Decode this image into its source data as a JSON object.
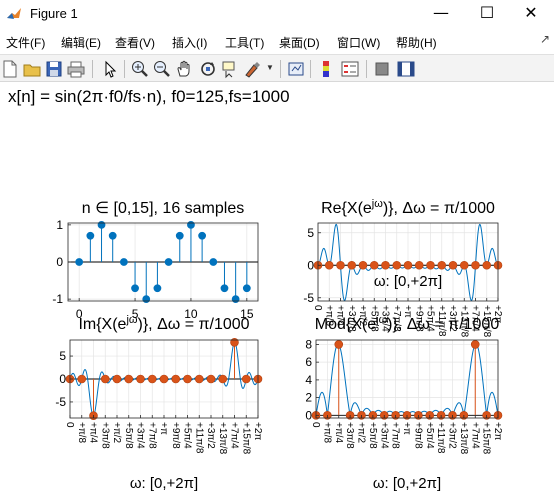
{
  "window": {
    "title": "Figure 1",
    "minimize": "—",
    "maximize": "☐",
    "close": "✕"
  },
  "menu": {
    "items": [
      "文件(F)",
      "编辑(E)",
      "查看(V)",
      "插入(I)",
      "工具(T)",
      "桌面(D)",
      "窗口(W)",
      "帮助(H)"
    ],
    "pin": "↗"
  },
  "toolbar": {
    "icons": [
      "new-figure-icon",
      "open-file-icon",
      "save-icon",
      "print-icon",
      "edit-plot-icon",
      "zoom-in-icon",
      "zoom-out-icon",
      "pan-icon",
      "rotate-3d-icon",
      "data-cursor-icon",
      "brush-icon",
      "link-plot-icon",
      "colorbar-icon",
      "legend-icon",
      "hide-plot-tools-icon",
      "show-plot-tools-icon"
    ]
  },
  "figure": {
    "suptitle": "x[n] = sin(2π·f0/fs·n), f0=125,fs=1000"
  },
  "colors": {
    "blue": "#0072bd",
    "orange": "#d95319"
  },
  "chart_data": [
    {
      "type": "stem",
      "title": "n ∈ [0,15], 16 samples",
      "xlabel": "",
      "ylabel": "",
      "x": [
        0,
        1,
        2,
        3,
        4,
        5,
        6,
        7,
        8,
        9,
        10,
        11,
        12,
        13,
        14,
        15
      ],
      "values": [
        0,
        0.707,
        1,
        0.707,
        0,
        -0.707,
        -1,
        -0.707,
        0,
        0.707,
        1,
        0.707,
        0,
        -0.707,
        -1,
        -0.707
      ],
      "xlim": [
        -1,
        16
      ],
      "ylim": [
        -1.05,
        1.05
      ],
      "xticks": [
        0,
        5,
        10,
        15
      ],
      "xtick_labels": [
        "0",
        "5",
        "10",
        "15"
      ],
      "yticks": [
        -1,
        0,
        1
      ],
      "ytick_labels": [
        "-1",
        "0",
        "1"
      ],
      "grid": true
    },
    {
      "type": "line+scatter",
      "title": "Re{X(e^{jω})}, Δω = π/1000",
      "xlabel": "ω: [0,+2π]",
      "ylabel": "",
      "points_x": [
        0,
        0.125,
        0.25,
        0.375,
        0.5,
        0.625,
        0.75,
        0.875,
        1,
        1.125,
        1.25,
        1.375,
        1.5,
        1.625,
        1.75,
        1.875,
        2
      ],
      "points_y": [
        0,
        0,
        0,
        0,
        0,
        0,
        0,
        0,
        0,
        0,
        0,
        0,
        0,
        0,
        0,
        0,
        0
      ],
      "xlim": [
        0,
        2
      ],
      "ylim": [
        -5.5,
        6.5
      ],
      "yticks": [
        -5,
        0,
        5
      ],
      "ytick_labels": [
        "-5",
        "0",
        "5"
      ],
      "grid": true
    },
    {
      "type": "line+scatter",
      "title": "Im{X(e^{jω})}, Δω = π/1000",
      "xlabel": "ω: [0,+2π]",
      "ylabel": "",
      "points_x": [
        0,
        0.125,
        0.25,
        0.375,
        0.5,
        0.625,
        0.75,
        0.875,
        1,
        1.125,
        1.25,
        1.375,
        1.5,
        1.625,
        1.75,
        1.875,
        2
      ],
      "points_y": [
        0,
        0,
        -8,
        0,
        0,
        0,
        0,
        0,
        0,
        0,
        0,
        0,
        0,
        0,
        8,
        0,
        0
      ],
      "xlim": [
        0,
        2
      ],
      "ylim": [
        -8.5,
        8.5
      ],
      "yticks": [
        -5,
        0,
        5
      ],
      "ytick_labels": [
        "-5",
        "0",
        "5"
      ],
      "grid": true
    },
    {
      "type": "line+scatter",
      "title": "Mod{X(e^{jω})}, Δω = π/1000",
      "xlabel": "ω: [0,+2π]",
      "ylabel": "",
      "points_x": [
        0,
        0.125,
        0.25,
        0.375,
        0.5,
        0.625,
        0.75,
        0.875,
        1,
        1.125,
        1.25,
        1.375,
        1.5,
        1.625,
        1.75,
        1.875,
        2
      ],
      "points_y": [
        0,
        0,
        8,
        0,
        0,
        0,
        0,
        0,
        0,
        0,
        0,
        0,
        0,
        0,
        8,
        0,
        0
      ],
      "xlim": [
        0,
        2
      ],
      "ylim": [
        -0.3,
        8.5
      ],
      "yticks": [
        0,
        2,
        4,
        6,
        8
      ],
      "ytick_labels": [
        "0",
        "2",
        "4",
        "6",
        "8"
      ],
      "grid": true
    }
  ],
  "freq_tick_labels": [
    "0",
    "+π/8",
    "+π/4",
    "+3π/8",
    "+π/2",
    "+5π/8",
    "+3π/4",
    "+7π/8",
    "+π",
    "+9π/8",
    "+5π/4",
    "+11π/8",
    "+3π/2",
    "+13π/8",
    "+7π/4",
    "+15π/8",
    "+2π"
  ]
}
